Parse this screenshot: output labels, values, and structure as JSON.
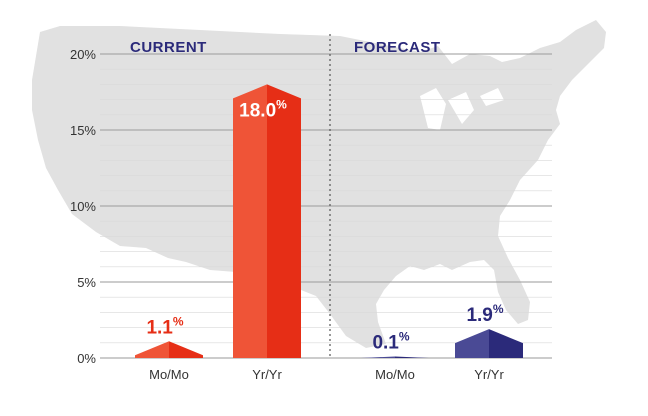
{
  "colors": {
    "map": "#e1e1e1",
    "grid": "#9a9a9a",
    "current": "#e62e16",
    "current_light": "#ef5437",
    "forecast": "#2b2a7a",
    "forecast_light": "#4a4a95",
    "axis_text": "#333333",
    "panel_title": "#2b2a7a",
    "divider": "#555555"
  },
  "chart_data": {
    "type": "bar",
    "panels": [
      {
        "title": "CURRENT",
        "categories": [
          "Mo/Mo",
          "Yr/Yr"
        ],
        "values": [
          1.1,
          18.0
        ],
        "labels": [
          "1.1",
          "18.0"
        ],
        "color": "current"
      },
      {
        "title": "FORECAST",
        "categories": [
          "Mo/Mo",
          "Yr/Yr"
        ],
        "values": [
          0.1,
          1.9
        ],
        "labels": [
          "0.1",
          "1.9"
        ],
        "color": "forecast"
      }
    ],
    "unit": "%",
    "y_ticks": [
      "0%",
      "5%",
      "10%",
      "15%",
      "20%"
    ],
    "y_tick_values": [
      0,
      5,
      10,
      15,
      20
    ],
    "ylim": [
      0,
      20
    ],
    "grid": true,
    "background": "map"
  }
}
